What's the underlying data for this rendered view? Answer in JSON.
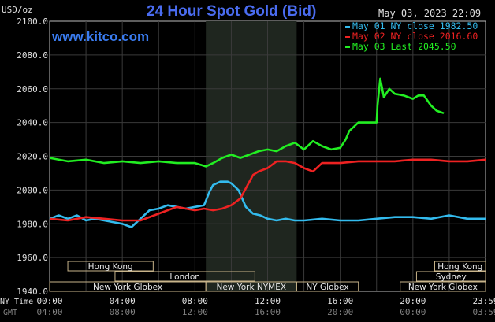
{
  "header": {
    "title": "24 Hour Spot Gold (Bid)",
    "units": "USD/oz",
    "timestamp": "May 03, 2023 22:09",
    "site": "www.kitco.com"
  },
  "legend": [
    {
      "label": "May 01 NY close 1982.50",
      "color": "#33bbee"
    },
    {
      "label": "May 02 NY close 2016.60",
      "color": "#ee2222"
    },
    {
      "label": "May 03 Last 2045.50",
      "color": "#22ee22"
    }
  ],
  "axis": {
    "y_ticks": [
      "2100.0",
      "2080.0",
      "2060.0",
      "2040.0",
      "2020.0",
      "2000.0",
      "1980.0",
      "1960.0",
      "1940.0"
    ],
    "tz_ny": "NY Time",
    "tz_gmt": "GMT",
    "x_ticks_ny": [
      "00:00",
      "04:00",
      "08:00",
      "12:00",
      "16:00",
      "20:00",
      "23:59"
    ],
    "x_ticks_gmt": [
      "04:00",
      "08:00",
      "12:00",
      "16:00",
      "20:00",
      "00:00",
      "03:59"
    ]
  },
  "sessions": [
    {
      "label": "Hong Kong",
      "start": 1.0,
      "end": 5.7,
      "row": 0
    },
    {
      "label": "London",
      "start": 3.6,
      "end": 11.3,
      "row": 1
    },
    {
      "label": "New York Globex",
      "start": 0.0,
      "end": 8.6,
      "row": 2
    },
    {
      "label": "New York NYMEX",
      "start": 8.6,
      "end": 13.6,
      "row": 2
    },
    {
      "label": "NY Globex",
      "start": 13.6,
      "end": 17.0,
      "row": 2
    },
    {
      "label": "Hong Kong",
      "start": 21.2,
      "end": 24.0,
      "row": 0
    },
    {
      "label": "Sydney",
      "start": 20.2,
      "end": 24.0,
      "row": 1
    },
    {
      "label": "New York Globex",
      "start": 19.3,
      "end": 24.0,
      "row": 2
    }
  ],
  "chart_data": {
    "type": "line",
    "xlabel": "NY Time",
    "ylabel": "USD/oz",
    "xlim": [
      0,
      24
    ],
    "ylim": [
      1940,
      2100
    ],
    "grid": true,
    "shaded_region": [
      8.6,
      13.6
    ],
    "series": [
      {
        "name": "May 01 NY close 1982.50",
        "color": "#33bbee",
        "x": [
          0,
          0.5,
          1,
          1.5,
          2,
          2.5,
          3,
          3.5,
          4,
          4.5,
          5,
          5.5,
          6,
          6.5,
          7,
          7.5,
          8,
          8.5,
          8.8,
          9,
          9.4,
          9.8,
          10,
          10.4,
          10.8,
          11.2,
          11.6,
          12,
          12.5,
          13,
          13.5,
          14,
          15,
          16,
          17,
          18,
          19,
          20,
          21,
          22,
          23,
          24
        ],
        "y": [
          1983,
          1985,
          1983,
          1985,
          1982,
          1983,
          1982,
          1981,
          1980,
          1978,
          1983,
          1988,
          1989,
          1991,
          1990,
          1989,
          1990,
          1991,
          1999,
          2003,
          2005,
          2005,
          2004,
          2000,
          1990,
          1986,
          1985,
          1983,
          1982,
          1983,
          1982,
          1982,
          1983,
          1982,
          1982,
          1983,
          1984,
          1984,
          1983,
          1985,
          1983,
          1983
        ]
      },
      {
        "name": "May 02 NY close 2016.60",
        "color": "#ee2222",
        "x": [
          0,
          1,
          2,
          3,
          4,
          5,
          6,
          7,
          8,
          8.5,
          9,
          9.5,
          10,
          10.5,
          11,
          11.2,
          11.5,
          12,
          12.5,
          13,
          13.5,
          14,
          14.5,
          15,
          15.5,
          16,
          17,
          18,
          19,
          20,
          21,
          22,
          23,
          24
        ],
        "y": [
          1983,
          1982,
          1984,
          1983,
          1982,
          1982,
          1986,
          1990,
          1988,
          1989,
          1988,
          1989,
          1991,
          1995,
          2005,
          2009,
          2011,
          2013,
          2017,
          2017,
          2016,
          2013,
          2011,
          2016,
          2016,
          2016,
          2017,
          2017,
          2017,
          2018,
          2018,
          2017,
          2017,
          2018
        ]
      },
      {
        "name": "May 03 Last 2045.50",
        "color": "#22ee22",
        "x": [
          0,
          1,
          2,
          3,
          4,
          5,
          6,
          7,
          8,
          8.6,
          9,
          9.5,
          10,
          10.5,
          11,
          11.5,
          12,
          12.5,
          13,
          13.5,
          14,
          14.5,
          15,
          15.5,
          16,
          16.3,
          16.5,
          16.7,
          17,
          17.5,
          18,
          18.05,
          18.2,
          18.4,
          18.7,
          19,
          19.5,
          20,
          20.3,
          20.6,
          21,
          21.3,
          21.7
        ],
        "y": [
          2019,
          2017,
          2018,
          2016,
          2017,
          2016,
          2017,
          2016,
          2016,
          2014,
          2016,
          2019,
          2021,
          2019,
          2021,
          2023,
          2024,
          2023,
          2026,
          2028,
          2024,
          2029,
          2026,
          2024,
          2025,
          2030,
          2035,
          2037,
          2040,
          2040,
          2040,
          2050,
          2066,
          2055,
          2060,
          2057,
          2056,
          2054,
          2056,
          2056,
          2050,
          2047,
          2045.5
        ]
      }
    ]
  }
}
